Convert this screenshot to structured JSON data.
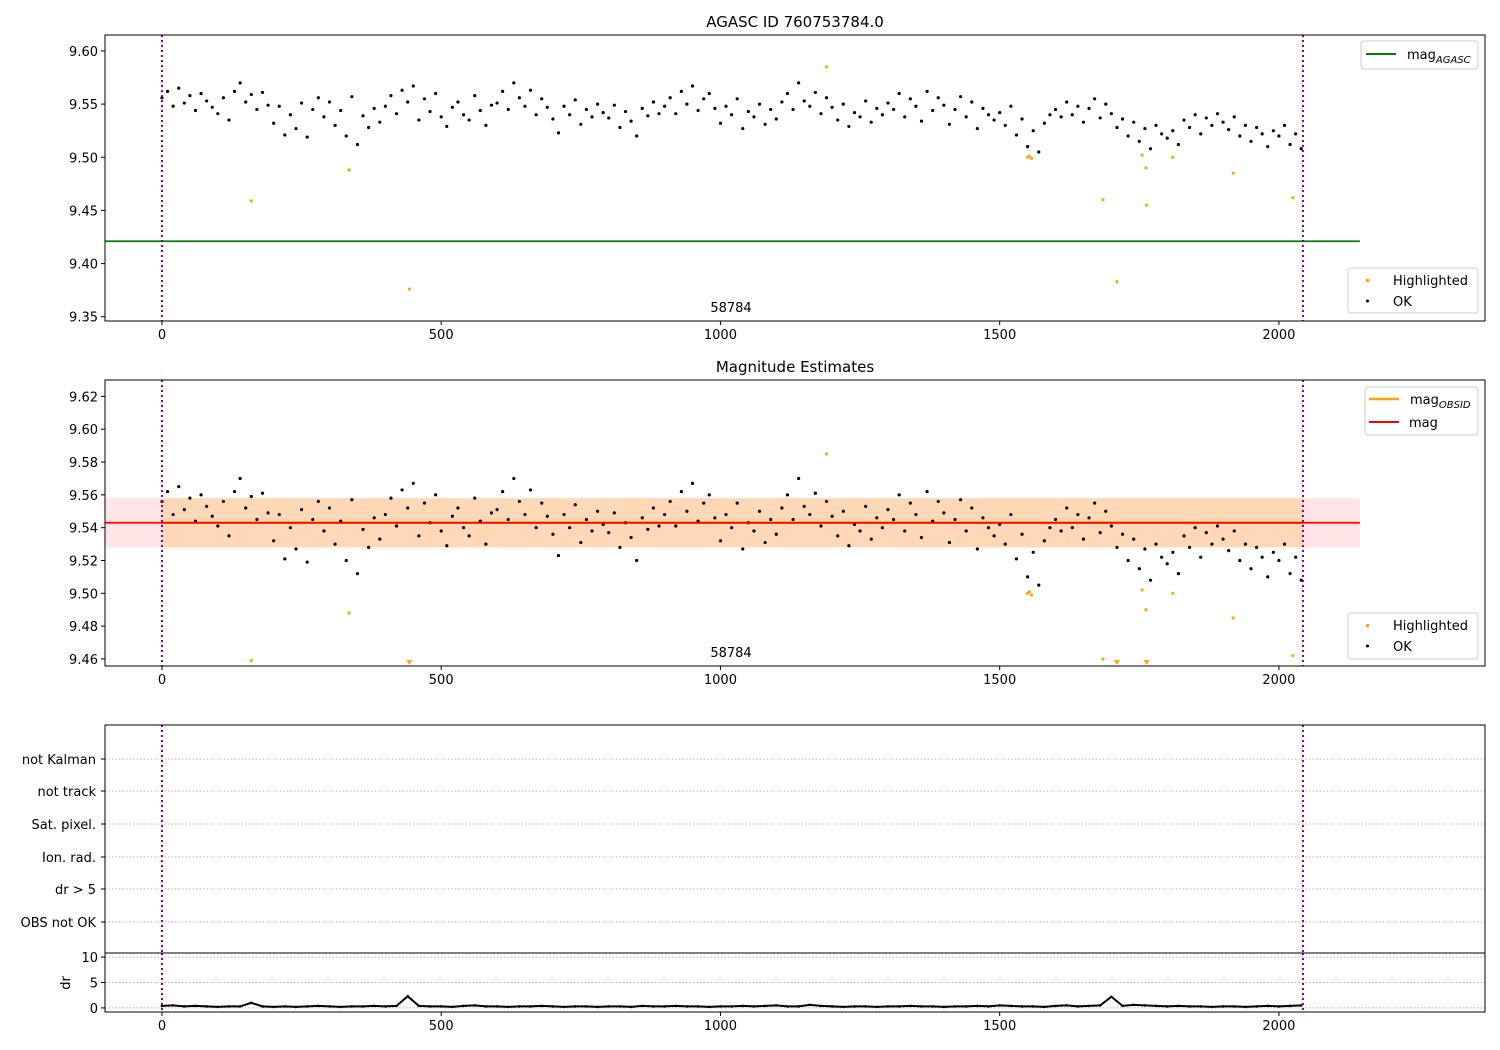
{
  "chart_data": [
    {
      "type": "scatter",
      "title": "AGASC ID 760753784.0",
      "xlim": [
        -102,
        2369
      ],
      "ylim": [
        9.346,
        9.615
      ],
      "xticks": [
        0,
        500,
        1000,
        1500,
        2000
      ],
      "yticks": [
        "9.35",
        "9.40",
        "9.45",
        "9.50",
        "9.55",
        "9.60"
      ],
      "annotation": "58784",
      "mag_agasc": 9.421,
      "mag_agasc_xrange": [
        -102,
        2145
      ],
      "obs_boundaries": [
        0,
        2043
      ],
      "legend_upper": {
        "position": "top-right",
        "entries": [
          "mag",
          "AGASC"
        ]
      },
      "legend_lower": {
        "position": "bottom-right",
        "entries": [
          "Highlighted",
          "OK"
        ]
      }
    },
    {
      "type": "scatter",
      "title": "Magnitude Estimates",
      "xlim": [
        -102,
        2369
      ],
      "ylim": [
        9.4557,
        9.63
      ],
      "xticks": [
        0,
        500,
        1000,
        1500,
        2000
      ],
      "yticks": [
        "9.46",
        "9.48",
        "9.50",
        "9.52",
        "9.54",
        "9.56",
        "9.58",
        "9.60",
        "9.62"
      ],
      "annotation": "58784",
      "mag": 9.543,
      "mag_band": [
        9.528,
        9.558
      ],
      "mag_xrange": [
        -102,
        2145
      ],
      "mag_obsid": 9.543,
      "mag_obsid_band": [
        9.528,
        9.558
      ],
      "mag_obsid_xrange": [
        0,
        2043
      ],
      "legend_upper": {
        "position": "top-right",
        "entries": [
          "mag",
          "OBSID",
          "mag"
        ]
      },
      "legend_lower": {
        "position": "bottom-right",
        "entries": [
          "Highlighted",
          "OK"
        ]
      }
    },
    {
      "type": "table",
      "flags": [
        "not Kalman",
        "not track",
        "Sat. pixel.",
        "Ion. rad.",
        "dr > 5",
        "OBS not OK"
      ]
    },
    {
      "type": "scatter",
      "ylabel": "dr",
      "ylim": [
        -0.8,
        10.8
      ],
      "yticks": [
        "0",
        "5",
        "10"
      ],
      "xticks": [
        0,
        500,
        1000,
        1500,
        2000
      ],
      "x_start": 0,
      "x_step": 20,
      "dr": [
        0.4,
        0.5,
        0.3,
        0.4,
        0.3,
        0.2,
        0.3,
        0.3,
        1.0,
        0.3,
        0.2,
        0.3,
        0.2,
        0.3,
        0.4,
        0.3,
        0.2,
        0.3,
        0.3,
        0.4,
        0.3,
        0.4,
        2.3,
        0.4,
        0.3,
        0.3,
        0.2,
        0.4,
        0.5,
        0.3,
        0.3,
        0.2,
        0.3,
        0.3,
        0.4,
        0.3,
        0.2,
        0.3,
        0.3,
        0.2,
        0.3,
        0.3,
        0.2,
        0.4,
        0.3,
        0.3,
        0.4,
        0.3,
        0.3,
        0.2,
        0.3,
        0.3,
        0.4,
        0.3,
        0.4,
        0.5,
        0.3,
        0.3,
        0.6,
        0.4,
        0.3,
        0.2,
        0.3,
        0.3,
        0.2,
        0.3,
        0.3,
        0.4,
        0.3,
        0.3,
        0.2,
        0.3,
        0.3,
        0.4,
        0.3,
        0.5,
        0.4,
        0.3,
        0.3,
        0.2,
        0.4,
        0.5,
        0.3,
        0.4,
        0.5,
        2.2,
        0.4,
        0.6,
        0.5,
        0.4,
        0.3,
        0.4,
        0.3,
        0.3,
        0.2,
        0.3,
        0.3,
        0.2,
        0.3,
        0.4,
        0.3,
        0.4,
        0.5
      ]
    }
  ],
  "ok_points": {
    "x_start": 0,
    "x_step": 10,
    "mag": [
      9.556,
      9.562,
      9.548,
      9.565,
      9.551,
      9.558,
      9.544,
      9.56,
      9.553,
      9.547,
      9.541,
      9.556,
      9.535,
      9.562,
      9.57,
      9.552,
      9.559,
      9.545,
      9.561,
      9.549,
      9.532,
      9.548,
      9.521,
      9.54,
      9.527,
      9.551,
      9.519,
      9.545,
      9.556,
      9.538,
      9.552,
      9.53,
      9.544,
      9.52,
      9.557,
      9.512,
      9.539,
      9.528,
      9.546,
      9.533,
      9.548,
      9.558,
      9.541,
      9.563,
      9.552,
      9.567,
      9.535,
      9.555,
      9.543,
      9.56,
      9.538,
      9.529,
      9.547,
      9.552,
      9.54,
      9.535,
      9.558,
      9.544,
      9.53,
      9.549,
      9.551,
      9.562,
      9.545,
      9.57,
      9.556,
      9.548,
      9.563,
      9.54,
      9.555,
      9.547,
      9.536,
      9.523,
      9.548,
      9.54,
      9.554,
      9.531,
      9.545,
      9.538,
      9.55,
      9.542,
      9.537,
      9.549,
      9.528,
      9.543,
      9.534,
      9.52,
      9.546,
      9.539,
      9.552,
      9.541,
      9.548,
      9.556,
      9.541,
      9.562,
      9.55,
      9.567,
      9.544,
      9.555,
      9.56,
      9.546,
      9.532,
      9.548,
      9.54,
      9.555,
      9.527,
      9.543,
      9.538,
      9.55,
      9.531,
      9.545,
      9.536,
      9.552,
      9.56,
      9.545,
      9.57,
      9.553,
      9.548,
      9.561,
      9.541,
      9.556,
      9.547,
      9.535,
      9.55,
      9.529,
      9.542,
      9.538,
      9.553,
      9.533,
      9.546,
      9.54,
      9.551,
      9.545,
      9.56,
      9.538,
      9.555,
      9.548,
      9.534,
      9.562,
      9.544,
      9.556,
      9.549,
      9.531,
      9.545,
      9.557,
      9.538,
      9.552,
      9.527,
      9.546,
      9.54,
      9.535,
      9.542,
      9.53,
      9.548,
      9.521,
      9.536,
      9.51,
      9.525,
      9.505,
      9.532,
      9.54,
      9.545,
      9.538,
      9.552,
      9.54,
      9.548,
      9.533,
      9.546,
      9.555,
      9.537,
      9.55,
      9.541,
      9.528,
      9.536,
      9.52,
      9.533,
      9.515,
      9.527,
      9.508,
      9.53,
      9.522,
      9.518,
      9.525,
      9.512,
      9.535,
      9.528,
      9.54,
      9.522,
      9.537,
      9.53,
      9.541,
      9.533,
      9.526,
      9.538,
      9.52,
      9.53,
      9.515,
      9.528,
      9.522,
      9.51,
      9.525,
      9.52,
      9.53,
      9.512,
      9.522,
      9.508
    ]
  },
  "highlighted_points": [
    [
      160,
      9.459
    ],
    [
      335,
      9.488
    ],
    [
      443,
      9.376
    ],
    [
      1190,
      9.585
    ],
    [
      1550,
      9.5
    ],
    [
      1553,
      9.501
    ],
    [
      1557,
      9.499
    ],
    [
      1685,
      9.46
    ],
    [
      1710,
      9.383
    ],
    [
      1755,
      9.502
    ],
    [
      1762,
      9.49
    ],
    [
      1763,
      9.455
    ],
    [
      1810,
      9.5
    ],
    [
      1918,
      9.485
    ],
    [
      2025,
      9.462
    ]
  ],
  "colors": {
    "ok": "#000000",
    "highlighted": "#ffa500",
    "mag_agasc": "#008000",
    "mag": "#ff0000",
    "mag_obsid": "#ffa500",
    "boundary": "#800080"
  }
}
